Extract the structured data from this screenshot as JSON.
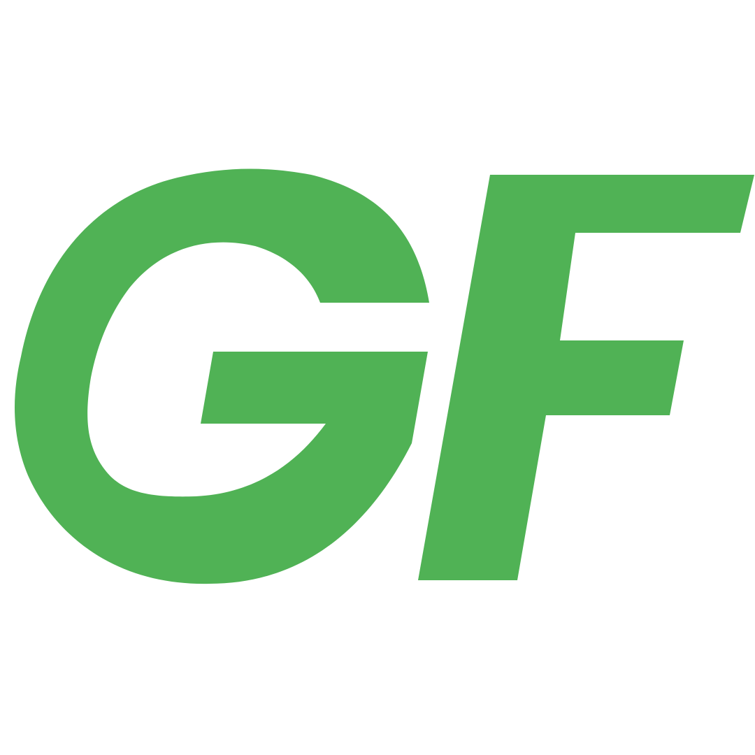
{
  "logo": {
    "text": "GF",
    "color": "#50b255",
    "background": "#ffffff"
  }
}
